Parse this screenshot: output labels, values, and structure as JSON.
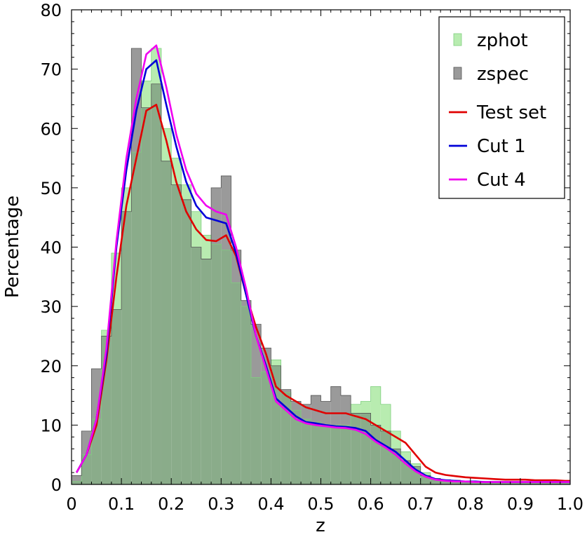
{
  "chart_data": {
    "type": "histogram",
    "xlabel": "z",
    "ylabel": "Percentage",
    "xlim": [
      0,
      1.0
    ],
    "ylim": [
      0,
      80
    ],
    "xticks": [
      "0",
      "0.1",
      "0.2",
      "0.3",
      "0.4",
      "0.5",
      "0.6",
      "0.7",
      "0.8",
      "0.9",
      "1.0"
    ],
    "yticks": [
      "0",
      "10",
      "20",
      "30",
      "40",
      "50",
      "60",
      "70",
      "80"
    ],
    "legend_position": "top-right",
    "bin_edges": [
      0,
      0.02,
      0.04,
      0.06,
      0.08,
      0.1,
      0.12,
      0.14,
      0.16,
      0.18,
      0.2,
      0.22,
      0.24,
      0.26,
      0.28,
      0.3,
      0.32,
      0.34,
      0.36,
      0.38,
      0.4,
      0.42,
      0.44,
      0.46,
      0.48,
      0.5,
      0.52,
      0.54,
      0.56,
      0.58,
      0.6,
      0.62,
      0.64,
      0.66,
      0.68,
      0.7,
      0.72,
      0.74,
      0.76,
      0.78,
      0.8,
      0.82,
      0.84,
      0.86,
      0.88,
      0.9,
      0.92,
      0.94,
      0.96,
      0.98,
      1.0
    ],
    "histograms": [
      {
        "name": "zphot",
        "color": "#b8ecb0",
        "values": [
          0.5,
          5,
          11,
          26,
          39,
          50,
          56,
          68,
          73.5,
          60,
          55,
          50.5,
          46,
          42,
          40.5,
          39.5,
          34,
          30,
          18,
          19,
          21,
          15.5,
          12.5,
          11,
          10.5,
          10,
          10,
          10,
          13.5,
          14,
          16.5,
          13.5,
          9,
          5.5,
          3.5,
          2,
          1,
          0.7,
          0.6,
          0.5,
          0.5,
          0.4,
          0.3,
          0.3,
          0.3,
          0.3,
          0.3,
          0.3,
          0.3,
          0.3
        ]
      },
      {
        "name": "zspec",
        "color": "#9a9a9a",
        "values": [
          1.5,
          9,
          19.5,
          25,
          29.5,
          46,
          73.5,
          63.5,
          67.5,
          54.5,
          50.5,
          48,
          40,
          38,
          50,
          52,
          39.5,
          31,
          27,
          23,
          20,
          16,
          14,
          13.5,
          15,
          14,
          16.5,
          15,
          12,
          12,
          10,
          9,
          6,
          4,
          3,
          1.5,
          1,
          0.8,
          0.7,
          0.6,
          0.5,
          0.5,
          0.4,
          0.4,
          0.3,
          0.3,
          0.3,
          0.3,
          0.3,
          0.3
        ]
      }
    ],
    "series": [
      {
        "name": "Test set",
        "color": "#e00000",
        "x": [
          0.01,
          0.03,
          0.05,
          0.07,
          0.09,
          0.11,
          0.13,
          0.15,
          0.17,
          0.19,
          0.21,
          0.23,
          0.25,
          0.27,
          0.29,
          0.31,
          0.33,
          0.35,
          0.37,
          0.39,
          0.41,
          0.43,
          0.45,
          0.47,
          0.49,
          0.51,
          0.53,
          0.55,
          0.57,
          0.59,
          0.61,
          0.63,
          0.65,
          0.67,
          0.69,
          0.71,
          0.73,
          0.75,
          0.77,
          0.79,
          0.81,
          0.83,
          0.85,
          0.87,
          0.89,
          0.91,
          0.93,
          0.95,
          0.97,
          0.99,
          1.0
        ],
        "y": [
          2,
          5,
          10,
          21,
          35,
          47,
          55,
          63,
          64,
          58,
          51,
          46,
          43,
          41.2,
          41,
          42,
          38.5,
          32,
          26.5,
          22,
          16.5,
          15,
          14,
          13,
          12.5,
          12,
          12,
          12,
          11.5,
          11,
          10,
          9,
          8,
          7,
          5,
          3,
          2,
          1.6,
          1.4,
          1.2,
          1.1,
          1.0,
          0.9,
          0.8,
          0.8,
          0.8,
          0.7,
          0.7,
          0.7,
          0.6,
          0.6
        ]
      },
      {
        "name": "Cut 1",
        "color": "#0000d8",
        "x": [
          0.01,
          0.03,
          0.05,
          0.07,
          0.09,
          0.11,
          0.13,
          0.15,
          0.17,
          0.19,
          0.21,
          0.23,
          0.25,
          0.27,
          0.29,
          0.31,
          0.33,
          0.35,
          0.37,
          0.39,
          0.41,
          0.43,
          0.45,
          0.47,
          0.49,
          0.51,
          0.53,
          0.55,
          0.57,
          0.59,
          0.61,
          0.63,
          0.65,
          0.67,
          0.69,
          0.71,
          0.73,
          0.75,
          0.77,
          0.79,
          0.81,
          0.83,
          0.85,
          0.87,
          0.89,
          0.91,
          0.93,
          0.95,
          0.97,
          0.99,
          1.0
        ],
        "y": [
          2,
          5,
          11,
          22,
          40,
          53,
          63,
          70,
          71.5,
          64,
          57,
          51,
          47,
          45,
          44.5,
          44,
          39,
          32,
          25,
          20,
          14.5,
          13,
          11.5,
          10.5,
          10.3,
          10,
          9.8,
          9.7,
          9.5,
          9,
          7.5,
          6.5,
          5.5,
          4,
          2.5,
          1.5,
          0.9,
          0.7,
          0.6,
          0.5,
          0.5,
          0.4,
          0.4,
          0.4,
          0.4,
          0.4,
          0.4,
          0.4,
          0.4,
          0.4,
          0.4
        ]
      },
      {
        "name": "Cut 4",
        "color": "#f000f0",
        "x": [
          0.01,
          0.03,
          0.05,
          0.07,
          0.09,
          0.11,
          0.13,
          0.15,
          0.17,
          0.19,
          0.21,
          0.23,
          0.25,
          0.27,
          0.29,
          0.31,
          0.33,
          0.35,
          0.37,
          0.39,
          0.41,
          0.43,
          0.45,
          0.47,
          0.49,
          0.51,
          0.53,
          0.55,
          0.57,
          0.59,
          0.61,
          0.63,
          0.65,
          0.67,
          0.69,
          0.71,
          0.73,
          0.75,
          0.77,
          0.79,
          0.81,
          0.83,
          0.85,
          0.87,
          0.89,
          0.91,
          0.93,
          0.95,
          0.97,
          0.99,
          1.0
        ],
        "y": [
          2,
          5,
          11,
          23,
          41,
          55,
          65,
          72.5,
          74,
          67,
          59,
          53,
          49,
          47,
          46,
          45.5,
          40,
          33,
          25,
          19.5,
          14,
          12.5,
          11,
          10.3,
          10,
          9.8,
          9.6,
          9.5,
          9.2,
          8.5,
          7.2,
          6.2,
          5,
          3.5,
          2.2,
          1.3,
          0.8,
          0.6,
          0.5,
          0.5,
          0.4,
          0.4,
          0.4,
          0.4,
          0.4,
          0.4,
          0.4,
          0.4,
          0.4,
          0.4,
          0.4
        ]
      }
    ],
    "overlap_color": "#8aac8a"
  }
}
